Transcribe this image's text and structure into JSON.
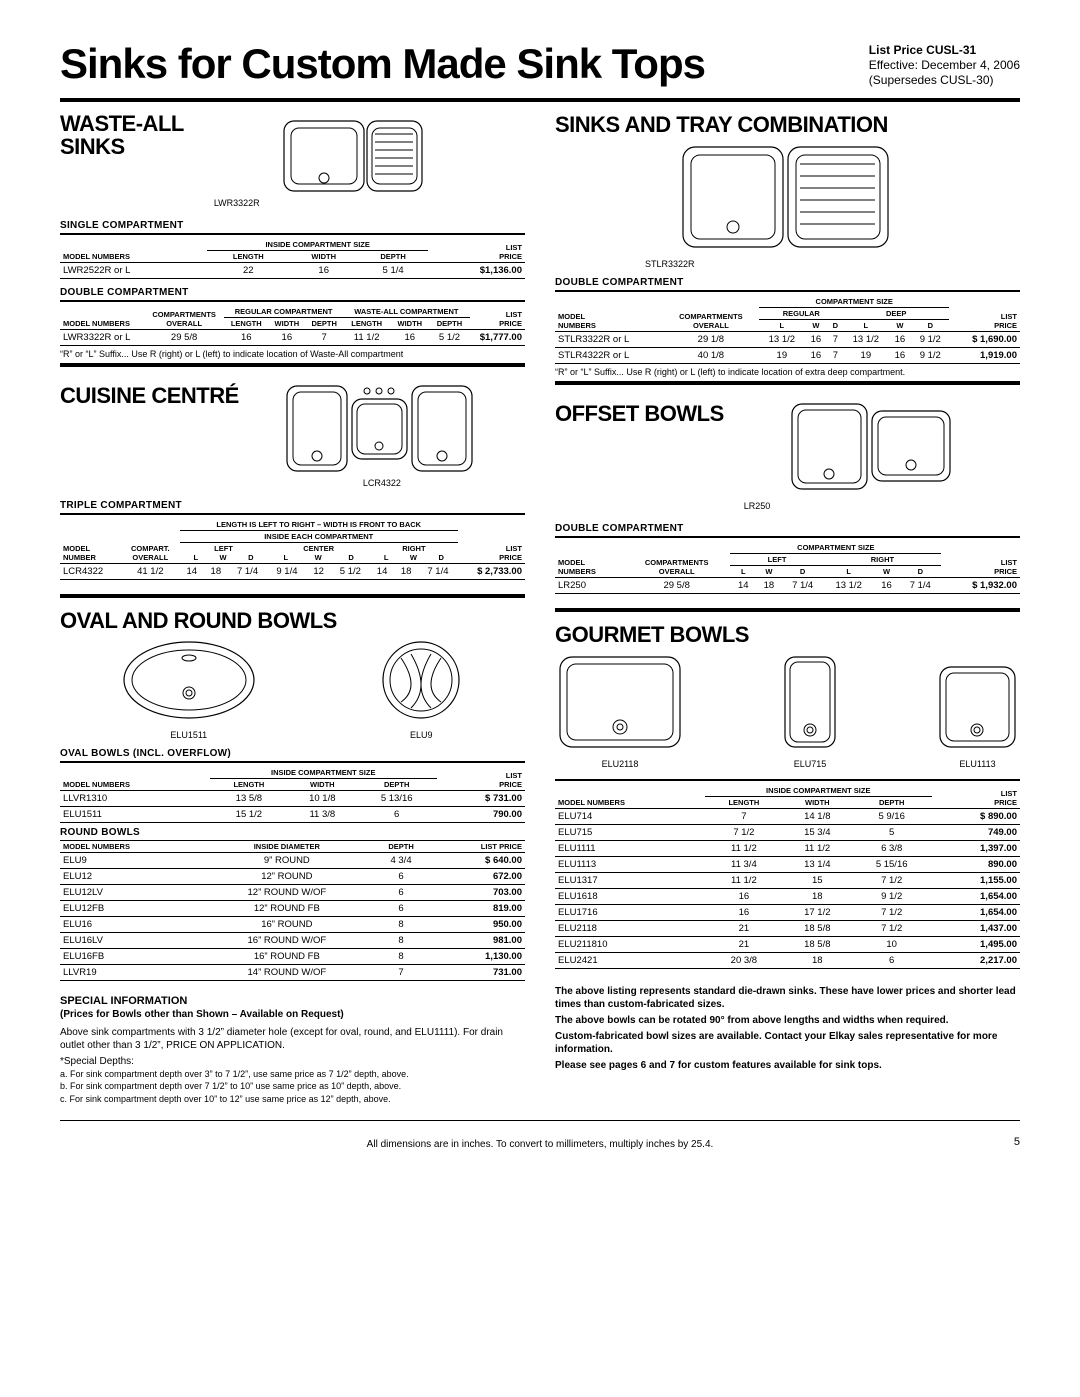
{
  "page": {
    "title": "Sinks for Custom Made Sink Tops",
    "list_price_code": "List Price CUSL-31",
    "effective": "Effective: December 4, 2006",
    "supersedes": "(Supersedes CUSL-30)",
    "footer_dim_note": "All dimensions are in inches. To convert to millimeters, multiply inches by 25.4.",
    "page_number": "5"
  },
  "waste_all": {
    "title": "WASTE-ALL SINKS",
    "illus_caption": "LWR3322R",
    "single": {
      "heading": "SINGLE COMPARTMENT",
      "group_header": "INSIDE COMPARTMENT SIZE",
      "cols": [
        "MODEL NUMBERS",
        "LENGTH",
        "WIDTH",
        "DEPTH",
        "LIST PRICE"
      ],
      "rows": [
        [
          "LWR2522R or L",
          "22",
          "16",
          "5 1/4",
          "$1,136.00"
        ]
      ]
    },
    "double": {
      "heading": "DOUBLE COMPARTMENT",
      "group_headers": [
        "COMPARTMENTS",
        "REGULAR COMPARTMENT",
        "WASTE-ALL COMPARTMENT",
        ""
      ],
      "cols": [
        "MODEL NUMBERS",
        "OVERALL",
        "LENGTH",
        "WIDTH",
        "DEPTH",
        "LENGTH",
        "WIDTH",
        "DEPTH",
        "LIST PRICE"
      ],
      "rows": [
        [
          "LWR3322R or L",
          "29 5/8",
          "16",
          "16",
          "7",
          "11 1/2",
          "16",
          "5 1/2",
          "$1,777.00"
        ]
      ]
    },
    "suffix_note": "“R” or “L” Suffix... Use R (right) or L (left) to indicate location of Waste-All compartment"
  },
  "cuisine": {
    "title": "CUISINE CENTRÉ",
    "illus_caption": "LCR4322",
    "triple": {
      "heading": "TRIPLE COMPARTMENT",
      "note_line": "LENGTH IS LEFT TO RIGHT – WIDTH IS FRONT TO BACK",
      "group_header": "INSIDE EACH COMPARTMENT",
      "sub_groups": [
        "LEFT",
        "CENTER",
        "RIGHT"
      ],
      "cols": [
        "MODEL NUMBER",
        "COMPART. OVERALL",
        "L",
        "W",
        "D",
        "L",
        "W",
        "D",
        "L",
        "W",
        "D",
        "LIST PRICE"
      ],
      "rows": [
        [
          "LCR4322",
          "41 1/2",
          "14",
          "18",
          "7 1/4",
          "9 1/4",
          "12",
          "5 1/2",
          "14",
          "18",
          "7 1/4",
          "$ 2,733.00"
        ]
      ]
    }
  },
  "oval_round": {
    "title": "OVAL AND ROUND BOWLS",
    "illus_captions": [
      "ELU1511",
      "ELU9"
    ],
    "oval": {
      "heading": "OVAL BOWLS (INCL. OVERFLOW)",
      "group_header": "INSIDE COMPARTMENT SIZE",
      "cols": [
        "MODEL NUMBERS",
        "LENGTH",
        "WIDTH",
        "DEPTH",
        "LIST PRICE"
      ],
      "rows": [
        [
          "LLVR1310",
          "13 5/8",
          "10 1/8",
          "5 13/16",
          "$ 731.00"
        ],
        [
          "ELU1511",
          "15 1/2",
          "11 3/8",
          "6",
          "790.00"
        ]
      ]
    },
    "round": {
      "heading": "ROUND BOWLS",
      "cols": [
        "MODEL NUMBERS",
        "INSIDE DIAMETER",
        "DEPTH",
        "LIST PRICE"
      ],
      "rows": [
        [
          "ELU9",
          "9” ROUND",
          "4 3/4",
          "$ 640.00"
        ],
        [
          "ELU12",
          "12” ROUND",
          "6",
          "672.00"
        ],
        [
          "ELU12LV",
          "12” ROUND W/OF",
          "6",
          "703.00"
        ],
        [
          "ELU12FB",
          "12” ROUND FB",
          "6",
          "819.00"
        ],
        [
          "ELU16",
          "16” ROUND",
          "8",
          "950.00"
        ],
        [
          "ELU16LV",
          "16” ROUND W/OF",
          "8",
          "981.00"
        ],
        [
          "ELU16FB",
          "16” ROUND FB",
          "8",
          "1,130.00"
        ],
        [
          "LLVR19",
          "14” ROUND W/OF",
          "7",
          "731.00"
        ]
      ]
    }
  },
  "sinks_tray": {
    "title": "SINKS AND TRAY COMBINATION",
    "illus_caption": "STLR3322R",
    "double": {
      "heading": "DOUBLE COMPARTMENT",
      "group_header": "COMPARTMENT SIZE",
      "sub_groups": [
        "REGULAR",
        "DEEP"
      ],
      "cols": [
        "MODEL NUMBERS",
        "COMPARTMENTS OVERALL",
        "L",
        "W",
        "D",
        "L",
        "W",
        "D",
        "LIST PRICE"
      ],
      "rows": [
        [
          "STLR3322R or L",
          "29 1/8",
          "13 1/2",
          "16",
          "7",
          "13 1/2",
          "16",
          "9 1/2",
          "$ 1,690.00"
        ],
        [
          "STLR4322R or L",
          "40 1/8",
          "19",
          "16",
          "7",
          "19",
          "16",
          "9 1/2",
          "1,919.00"
        ]
      ]
    },
    "suffix_note": "“R” or “L” Suffix... Use R (right) or L (left) to indicate location of extra deep compartment."
  },
  "offset": {
    "title": "OFFSET BOWLS",
    "illus_caption": "LR250",
    "double": {
      "heading": "DOUBLE COMPARTMENT",
      "group_header": "COMPARTMENT SIZE",
      "sub_groups": [
        "LEFT",
        "RIGHT"
      ],
      "cols": [
        "MODEL NUMBERS",
        "COMPARTMENTS OVERALL",
        "L",
        "W",
        "D",
        "L",
        "W",
        "D",
        "LIST PRICE"
      ],
      "rows": [
        [
          "LR250",
          "29 5/8",
          "14",
          "18",
          "7 1/4",
          "13 1/2",
          "16",
          "7 1/4",
          "$ 1,932.00"
        ]
      ]
    }
  },
  "gourmet": {
    "title": "GOURMET BOWLS",
    "illus_captions": [
      "ELU2118",
      "ELU715",
      "ELU1113"
    ],
    "table": {
      "group_header": "INSIDE COMPARTMENT SIZE",
      "cols": [
        "MODEL NUMBERS",
        "LENGTH",
        "WIDTH",
        "DEPTH",
        "LIST PRICE"
      ],
      "rows": [
        [
          "ELU714",
          "7",
          "14 1/8",
          "5 9/16",
          "$ 890.00"
        ],
        [
          "ELU715",
          "7 1/2",
          "15 3/4",
          "5",
          "749.00"
        ],
        [
          "ELU1111",
          "11 1/2",
          "11 1/2",
          "6 3/8",
          "1,397.00"
        ],
        [
          "ELU1113",
          "11 3/4",
          "13 1/4",
          "5 15/16",
          "890.00"
        ],
        [
          "ELU1317",
          "11 1/2",
          "15",
          "7 1/2",
          "1,155.00"
        ],
        [
          "ELU1618",
          "16",
          "18",
          "9 1/2",
          "1,654.00"
        ],
        [
          "ELU1716",
          "16",
          "17 1/2",
          "7 1/2",
          "1,654.00"
        ],
        [
          "ELU2118",
          "21",
          "18 5/8",
          "7 1/2",
          "1,437.00"
        ],
        [
          "ELU211810",
          "21",
          "18 5/8",
          "10",
          "1,495.00"
        ],
        [
          "ELU2421",
          "20 3/8",
          "18",
          "6",
          "2,217.00"
        ]
      ]
    }
  },
  "special": {
    "heading": "SPECIAL INFORMATION",
    "sub": "(Prices for Bowls other than Shown – Available on Request)",
    "body1": "Above sink compartments with 3 1/2” diameter hole (except for oval, round, and ELU1111). For drain outlet other than 3 1/2”, PRICE ON APPLICATION.",
    "depths_head": "*Special Depths:",
    "depths": [
      "a. For sink compartment depth over 3” to 7 1/2”, use same price as 7 1/2” depth, above.",
      "b. For sink compartment depth over 7 1/2” to 10” use same price as 10” depth, above.",
      "c. For sink compartment depth over 10” to 12” use same price as 12” depth, above."
    ]
  },
  "notes_right": [
    "The above listing represents standard die-drawn sinks. These have lower prices and shorter lead times than custom-fabricated sizes.",
    "The above bowls can be rotated 90° from above lengths and widths when required.",
    "Custom-fabricated bowl sizes are available. Contact your Elkay sales representative for more information.",
    "Please see pages 6 and 7 for custom features available for sink tops."
  ]
}
